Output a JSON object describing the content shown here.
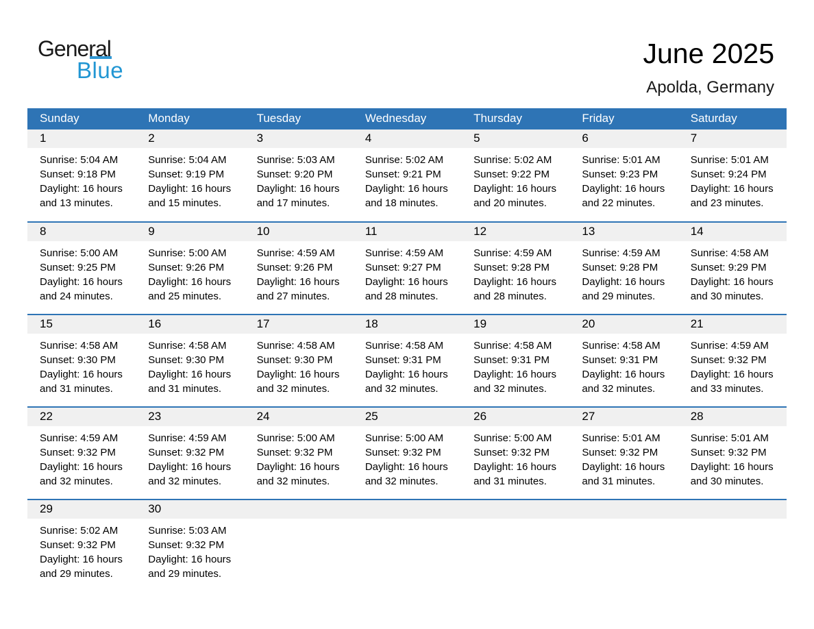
{
  "logo": {
    "part1": "General",
    "part2": "Blue"
  },
  "header": {
    "title": "June 2025",
    "subtitle": "Apolda, Germany"
  },
  "colors": {
    "header_blue": "#2e74b5",
    "week_divider_blue": "#2e74b5",
    "day_band_gray": "#f0f0f0",
    "logo_text_blue": "#2196d3",
    "logo_triangle_blue": "#1d74ba",
    "header_text": "#ffffff",
    "body_text": "#000000"
  },
  "weekdays": [
    "Sunday",
    "Monday",
    "Tuesday",
    "Wednesday",
    "Thursday",
    "Friday",
    "Saturday"
  ],
  "weeks": [
    [
      {
        "day": "1",
        "sunrise": "Sunrise: 5:04 AM",
        "sunset": "Sunset: 9:18 PM",
        "daylight": "Daylight: 16 hours and 13 minutes."
      },
      {
        "day": "2",
        "sunrise": "Sunrise: 5:04 AM",
        "sunset": "Sunset: 9:19 PM",
        "daylight": "Daylight: 16 hours and 15 minutes."
      },
      {
        "day": "3",
        "sunrise": "Sunrise: 5:03 AM",
        "sunset": "Sunset: 9:20 PM",
        "daylight": "Daylight: 16 hours and 17 minutes."
      },
      {
        "day": "4",
        "sunrise": "Sunrise: 5:02 AM",
        "sunset": "Sunset: 9:21 PM",
        "daylight": "Daylight: 16 hours and 18 minutes."
      },
      {
        "day": "5",
        "sunrise": "Sunrise: 5:02 AM",
        "sunset": "Sunset: 9:22 PM",
        "daylight": "Daylight: 16 hours and 20 minutes."
      },
      {
        "day": "6",
        "sunrise": "Sunrise: 5:01 AM",
        "sunset": "Sunset: 9:23 PM",
        "daylight": "Daylight: 16 hours and 22 minutes."
      },
      {
        "day": "7",
        "sunrise": "Sunrise: 5:01 AM",
        "sunset": "Sunset: 9:24 PM",
        "daylight": "Daylight: 16 hours and 23 minutes."
      }
    ],
    [
      {
        "day": "8",
        "sunrise": "Sunrise: 5:00 AM",
        "sunset": "Sunset: 9:25 PM",
        "daylight": "Daylight: 16 hours and 24 minutes."
      },
      {
        "day": "9",
        "sunrise": "Sunrise: 5:00 AM",
        "sunset": "Sunset: 9:26 PM",
        "daylight": "Daylight: 16 hours and 25 minutes."
      },
      {
        "day": "10",
        "sunrise": "Sunrise: 4:59 AM",
        "sunset": "Sunset: 9:26 PM",
        "daylight": "Daylight: 16 hours and 27 minutes."
      },
      {
        "day": "11",
        "sunrise": "Sunrise: 4:59 AM",
        "sunset": "Sunset: 9:27 PM",
        "daylight": "Daylight: 16 hours and 28 minutes."
      },
      {
        "day": "12",
        "sunrise": "Sunrise: 4:59 AM",
        "sunset": "Sunset: 9:28 PM",
        "daylight": "Daylight: 16 hours and 28 minutes."
      },
      {
        "day": "13",
        "sunrise": "Sunrise: 4:59 AM",
        "sunset": "Sunset: 9:28 PM",
        "daylight": "Daylight: 16 hours and 29 minutes."
      },
      {
        "day": "14",
        "sunrise": "Sunrise: 4:58 AM",
        "sunset": "Sunset: 9:29 PM",
        "daylight": "Daylight: 16 hours and 30 minutes."
      }
    ],
    [
      {
        "day": "15",
        "sunrise": "Sunrise: 4:58 AM",
        "sunset": "Sunset: 9:30 PM",
        "daylight": "Daylight: 16 hours and 31 minutes."
      },
      {
        "day": "16",
        "sunrise": "Sunrise: 4:58 AM",
        "sunset": "Sunset: 9:30 PM",
        "daylight": "Daylight: 16 hours and 31 minutes."
      },
      {
        "day": "17",
        "sunrise": "Sunrise: 4:58 AM",
        "sunset": "Sunset: 9:30 PM",
        "daylight": "Daylight: 16 hours and 32 minutes."
      },
      {
        "day": "18",
        "sunrise": "Sunrise: 4:58 AM",
        "sunset": "Sunset: 9:31 PM",
        "daylight": "Daylight: 16 hours and 32 minutes."
      },
      {
        "day": "19",
        "sunrise": "Sunrise: 4:58 AM",
        "sunset": "Sunset: 9:31 PM",
        "daylight": "Daylight: 16 hours and 32 minutes."
      },
      {
        "day": "20",
        "sunrise": "Sunrise: 4:58 AM",
        "sunset": "Sunset: 9:31 PM",
        "daylight": "Daylight: 16 hours and 32 minutes."
      },
      {
        "day": "21",
        "sunrise": "Sunrise: 4:59 AM",
        "sunset": "Sunset: 9:32 PM",
        "daylight": "Daylight: 16 hours and 33 minutes."
      }
    ],
    [
      {
        "day": "22",
        "sunrise": "Sunrise: 4:59 AM",
        "sunset": "Sunset: 9:32 PM",
        "daylight": "Daylight: 16 hours and 32 minutes."
      },
      {
        "day": "23",
        "sunrise": "Sunrise: 4:59 AM",
        "sunset": "Sunset: 9:32 PM",
        "daylight": "Daylight: 16 hours and 32 minutes."
      },
      {
        "day": "24",
        "sunrise": "Sunrise: 5:00 AM",
        "sunset": "Sunset: 9:32 PM",
        "daylight": "Daylight: 16 hours and 32 minutes."
      },
      {
        "day": "25",
        "sunrise": "Sunrise: 5:00 AM",
        "sunset": "Sunset: 9:32 PM",
        "daylight": "Daylight: 16 hours and 32 minutes."
      },
      {
        "day": "26",
        "sunrise": "Sunrise: 5:00 AM",
        "sunset": "Sunset: 9:32 PM",
        "daylight": "Daylight: 16 hours and 31 minutes."
      },
      {
        "day": "27",
        "sunrise": "Sunrise: 5:01 AM",
        "sunset": "Sunset: 9:32 PM",
        "daylight": "Daylight: 16 hours and 31 minutes."
      },
      {
        "day": "28",
        "sunrise": "Sunrise: 5:01 AM",
        "sunset": "Sunset: 9:32 PM",
        "daylight": "Daylight: 16 hours and 30 minutes."
      }
    ],
    [
      {
        "day": "29",
        "sunrise": "Sunrise: 5:02 AM",
        "sunset": "Sunset: 9:32 PM",
        "daylight": "Daylight: 16 hours and 29 minutes."
      },
      {
        "day": "30",
        "sunrise": "Sunrise: 5:03 AM",
        "sunset": "Sunset: 9:32 PM",
        "daylight": "Daylight: 16 hours and 29 minutes."
      },
      null,
      null,
      null,
      null,
      null
    ]
  ]
}
